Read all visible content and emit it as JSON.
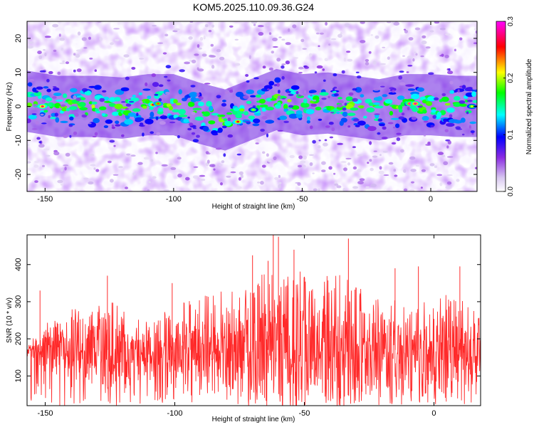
{
  "figure": {
    "title": "KOM5.2025.110.09.36.G24"
  },
  "chart_data": [
    {
      "type": "heatmap",
      "title": "KOM5.2025.110.09.36.G24",
      "xlabel": "Height of straight line (km)",
      "ylabel": "Frequency (Hz)",
      "xlim": [
        -157,
        18
      ],
      "ylim": [
        -25,
        25
      ],
      "x_ticks": [
        -150,
        -100,
        -50,
        0
      ],
      "x_tick_labels": [
        "-150",
        "-100",
        "-50",
        "0"
      ],
      "y_ticks": [
        -20,
        -10,
        0,
        10,
        20
      ],
      "y_tick_labels": [
        "-20",
        "-10",
        "0",
        "10",
        "20"
      ],
      "band_center_hz": [
        [
          -157,
          1.5
        ],
        [
          -145,
          0
        ],
        [
          -130,
          0
        ],
        [
          -120,
          -0.5
        ],
        [
          -110,
          0.5
        ],
        [
          -100,
          0.5
        ],
        [
          -90,
          -2
        ],
        [
          -80,
          -4
        ],
        [
          -70,
          -1
        ],
        [
          -60,
          2
        ],
        [
          -50,
          0.5
        ],
        [
          -40,
          1
        ],
        [
          -30,
          0
        ],
        [
          -20,
          -1
        ],
        [
          -10,
          0.5
        ],
        [
          0,
          0.5
        ],
        [
          10,
          0
        ],
        [
          18,
          0
        ]
      ],
      "strongest_peaks": [
        {
          "x": -151,
          "y": 0,
          "amplitude": 0.28
        },
        {
          "x": -108,
          "y": 0.5,
          "amplitude": 0.27
        },
        {
          "x": -106,
          "y": 0.8,
          "amplitude": 0.25
        },
        {
          "x": -75,
          "y": -4.5,
          "amplitude": 0.27
        },
        {
          "x": -69,
          "y": -1,
          "amplitude": 0.21
        },
        {
          "x": -8,
          "y": 0.8,
          "amplitude": 0.3
        },
        {
          "x": -6,
          "y": 0.8,
          "amplitude": 0.29
        },
        {
          "x": 16,
          "y": 0,
          "amplitude": 0.22
        }
      ],
      "colorbar": {
        "label": "Normalized spectral amplitude",
        "range": [
          0.0,
          0.3
        ],
        "ticks": [
          0.0,
          0.1,
          0.2,
          0.3
        ],
        "tick_labels": [
          "0.0",
          "0.1",
          "0.2",
          "0.3"
        ],
        "colors": [
          "#ffffff",
          "#d8c8f0",
          "#8a2be2",
          "#0000ff",
          "#00ffff",
          "#00ff00",
          "#ffff00",
          "#ff0000",
          "#ff00ff"
        ]
      }
    },
    {
      "type": "line",
      "xlabel": "Height of straight line (km)",
      "ylabel": "SNR (10 * v/v)",
      "xlim": [
        -157,
        18
      ],
      "ylim": [
        20,
        480
      ],
      "x_ticks": [
        -150,
        -100,
        -50,
        0
      ],
      "x_tick_labels": [
        "-150",
        "-100",
        "-50",
        "0"
      ],
      "y_ticks": [
        100,
        200,
        300,
        400
      ],
      "y_tick_labels": [
        "100",
        "200",
        "300",
        "400"
      ],
      "series": [
        {
          "color": "#ff2a2a",
          "summary": {
            "min": 20,
            "mean": 170,
            "max": 480
          },
          "envelope": {
            "x": [
              -157,
              -145,
              -135,
              -125,
              -115,
              -105,
              -95,
              -85,
              -75,
              -65,
              -55,
              -45,
              -35,
              -25,
              -15,
              -5,
              5,
              18
            ],
            "lower": [
              20,
              20,
              20,
              20,
              20,
              20,
              20,
              20,
              20,
              20,
              20,
              20,
              20,
              20,
              20,
              20,
              20,
              20
            ],
            "upper": [
              240,
              330,
              350,
              370,
              320,
              330,
              380,
              400,
              410,
              470,
              480,
              440,
              470,
              390,
              390,
              390,
              390,
              350
            ]
          },
          "notable_peaks": [
            {
              "x": -152,
              "y": 330
            },
            {
              "x": -126,
              "y": 370
            },
            {
              "x": -101,
              "y": 350
            },
            {
              "x": -70,
              "y": 425
            },
            {
              "x": -64,
              "y": 410
            },
            {
              "x": -62,
              "y": 480
            },
            {
              "x": -60,
              "y": 475
            },
            {
              "x": -54,
              "y": 440
            },
            {
              "x": -33,
              "y": 470
            },
            {
              "x": -15,
              "y": 390
            },
            {
              "x": -6,
              "y": 395
            },
            {
              "x": 10,
              "y": 395
            }
          ]
        }
      ]
    }
  ]
}
